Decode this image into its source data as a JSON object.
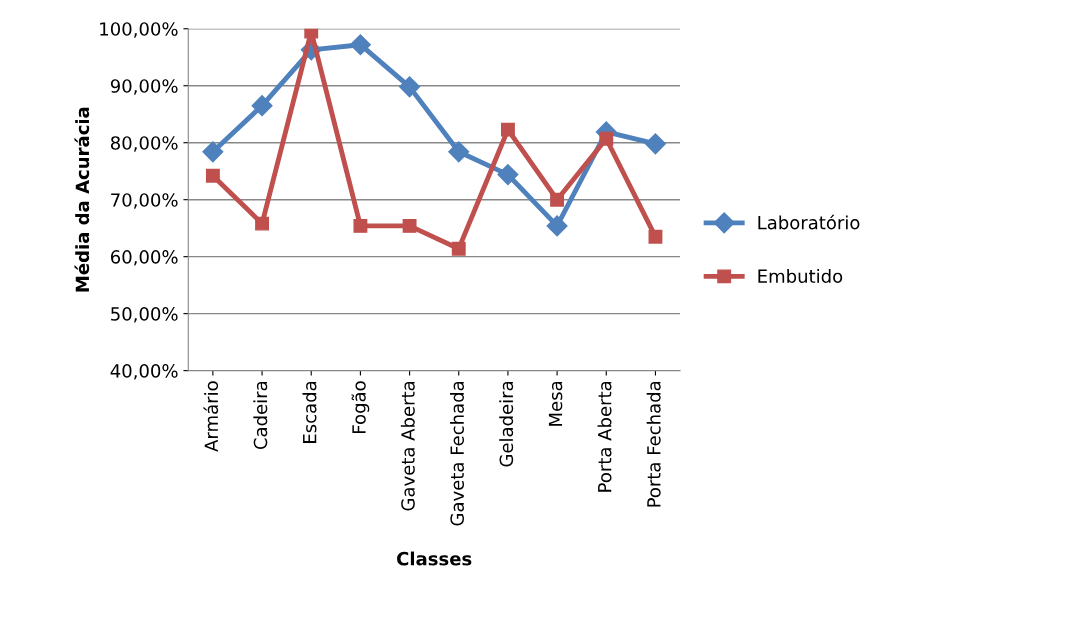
{
  "chart_data": {
    "type": "line",
    "xlabel": "Classes",
    "ylabel": "Média da Acurácia",
    "categories": [
      "Armário",
      "Cadeira",
      "Escada",
      "Fogão",
      "Gaveta Aberta",
      "Gaveta Fechada",
      "Geladeira",
      "Mesa",
      "Porta Aberta",
      "Porta Fechada"
    ],
    "series": [
      {
        "name": "Laboratório",
        "color": "#4f81bd",
        "marker": "diamond",
        "values": [
          78.4,
          86.5,
          96.3,
          97.2,
          89.8,
          78.4,
          74.4,
          65.4,
          81.9,
          79.8
        ]
      },
      {
        "name": "Embutido",
        "color": "#c0504d",
        "marker": "square",
        "values": [
          74.2,
          65.8,
          99.5,
          65.4,
          65.4,
          61.4,
          82.3,
          70.0,
          80.7,
          63.5
        ]
      }
    ],
    "ylim": [
      40,
      100
    ],
    "yticks": [
      {
        "value": 40,
        "label": "40,00%"
      },
      {
        "value": 50,
        "label": "50,00%"
      },
      {
        "value": 60,
        "label": "60,00%"
      },
      {
        "value": 70,
        "label": "70,00%"
      },
      {
        "value": 80,
        "label": "80,00%"
      },
      {
        "value": 90,
        "label": "90,00%"
      },
      {
        "value": 100,
        "label": "100,00%"
      }
    ],
    "grid": "y",
    "legend": "right"
  }
}
